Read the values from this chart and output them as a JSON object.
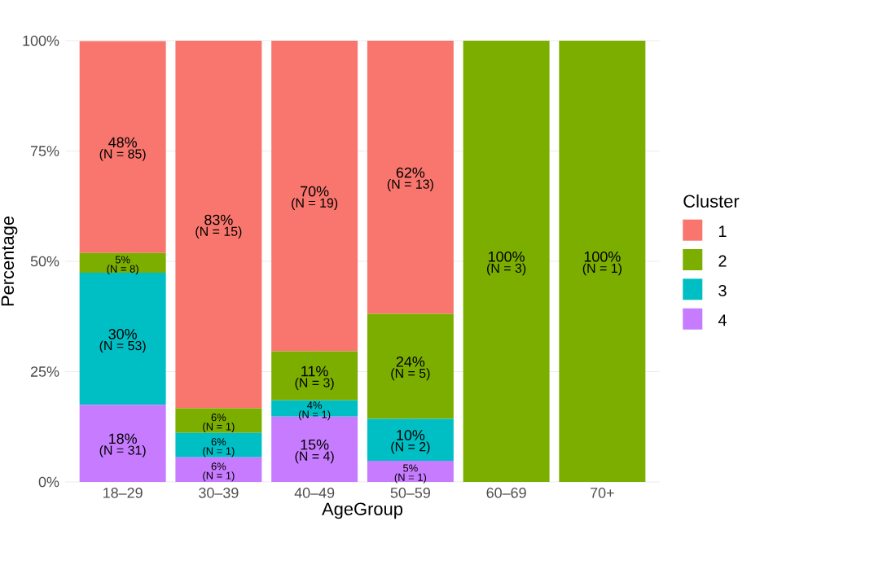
{
  "chart_data": {
    "type": "bar",
    "stacked": true,
    "xlabel": "AgeGroup",
    "ylabel": "Percentage",
    "legend_title": "Cluster",
    "legend": "right",
    "grid": true,
    "categories": [
      "18–29",
      "30–39",
      "40–49",
      "50–59",
      "60–69",
      "70+"
    ],
    "ylim": [
      0,
      100
    ],
    "yticks": [
      {
        "value": 0,
        "label": "0%"
      },
      {
        "value": 25,
        "label": "25%"
      },
      {
        "value": 50,
        "label": "50%"
      },
      {
        "value": 75,
        "label": "75%"
      },
      {
        "value": 100,
        "label": "100%"
      }
    ],
    "series": [
      {
        "name": "4",
        "color": "#c77cff",
        "values": [
          17.5,
          5.6,
          14.8,
          4.8,
          0,
          0
        ],
        "value_labels": [
          "18%",
          "6%",
          "15%",
          "5%",
          null,
          null
        ]
      },
      {
        "name": "3",
        "color": "#00bfc4",
        "values": [
          29.9,
          5.5,
          3.7,
          9.5,
          0,
          0
        ],
        "value_labels": [
          "30%",
          "6%",
          "4%",
          "10%",
          null,
          null
        ]
      },
      {
        "name": "2",
        "color": "#7cae00",
        "values": [
          4.5,
          5.6,
          11.1,
          23.8,
          100,
          100
        ],
        "value_labels": [
          "5%",
          "6%",
          "11%",
          "24%",
          "100%",
          "100%"
        ]
      },
      {
        "name": "1",
        "color": "#f8766d",
        "values": [
          48.0,
          83.3,
          70.4,
          61.9,
          0,
          0
        ],
        "value_labels": [
          "48%",
          "83%",
          "70%",
          "62%",
          null,
          null
        ]
      }
    ],
    "annotations": [
      "(N = 31)",
      "(N = 53)",
      "(N = 8)",
      "(N = 85)",
      "(N = 1)",
      "(N = 1)",
      "(N = 1)",
      "(N = 15)",
      "(N = 4)",
      "(N = 1)",
      "(N = 3)",
      "(N = 19)",
      "(N = 1)",
      "(N = 2)",
      "(N = 5)",
      "(N = 13)",
      "(N = 3)",
      "(N = 1)"
    ]
  }
}
